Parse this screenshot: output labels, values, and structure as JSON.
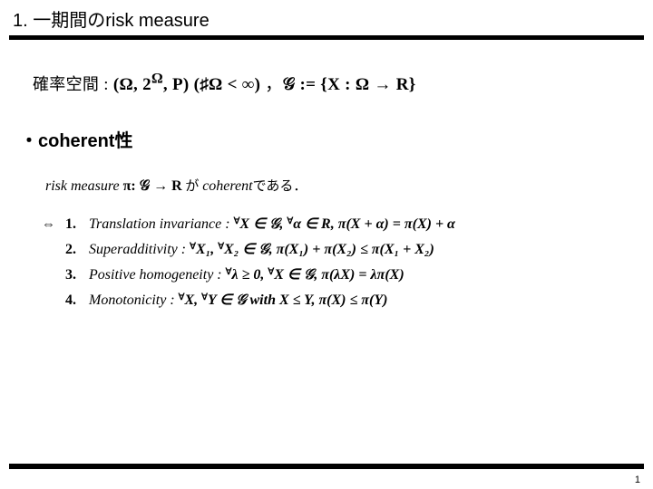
{
  "title": "1. 一期間のrisk measure",
  "prob_space": {
    "label_jp": "確率空間",
    "colon": " : ",
    "expr_a": "(Ω, 2",
    "expr_sup": "Ω",
    "expr_b": ", P) (♯Ω < ∞) ",
    "comma": "，",
    "g_def": "𝒢 := {X : Ω → R}"
  },
  "coherent_heading": "・coherent性",
  "defline": {
    "a": "risk measure ",
    "pi": "π: 𝒢 → R",
    "b": " が ",
    "c": "coherent",
    "d": "である．"
  },
  "iff": "⇔",
  "axioms": [
    {
      "num": "1.",
      "name": "Translation invariance : ",
      "body_pre": "",
      "sup1": "∀",
      "body1": "X ∈ 𝒢, ",
      "sup2": "∀",
      "body2": "α ∈ R, π(X + α) = π(X) + α"
    },
    {
      "num": "2.",
      "name": "Superadditivity : ",
      "body_pre": "",
      "sup1": "∀",
      "body1": "X₁, ",
      "sup2": "∀",
      "body2": "X₂ ∈ 𝒢, π(X₁) + π(X₂) ≤ π(X₁ + X₂)"
    },
    {
      "num": "3.",
      "name": "Positive homogeneity : ",
      "body_pre": "",
      "sup1": "∀",
      "body1": "λ ≥ 0, ",
      "sup2": "∀",
      "body2": "X ∈ 𝒢, π(λX) = λπ(X)"
    },
    {
      "num": "4.",
      "name": "Monotonicity : ",
      "body_pre": "",
      "sup1": "∀",
      "body1": "X, ",
      "sup2": "∀",
      "body2": "Y ∈ 𝒢 with X ≤ Y, π(X) ≤ π(Y)"
    }
  ],
  "with_text": "with",
  "page_number": "1",
  "colors": {
    "text": "#000000",
    "background": "#ffffff",
    "rule": "#000000"
  }
}
